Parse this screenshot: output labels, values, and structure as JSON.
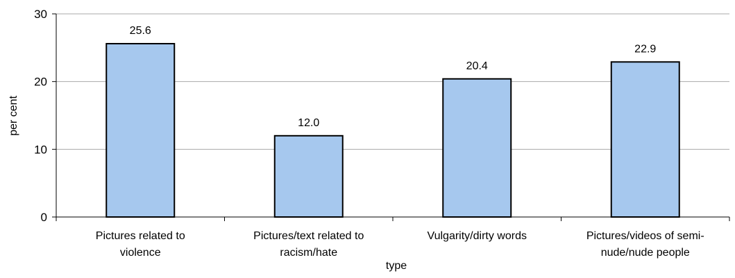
{
  "chart_data": {
    "type": "bar",
    "categories": [
      [
        "Pictures related to",
        "violence"
      ],
      [
        "Pictures/text related to",
        "racism/hate"
      ],
      [
        "Vulgarity/dirty words"
      ],
      [
        "Pictures/videos of semi-",
        "nude/nude people"
      ]
    ],
    "values": [
      25.6,
      12.0,
      20.4,
      22.9
    ],
    "value_labels": [
      "25.6",
      "12.0",
      "20.4",
      "22.9"
    ],
    "xlabel": "type",
    "ylabel": "per cent",
    "ylim": [
      0,
      30
    ],
    "yticks": [
      0,
      10,
      20,
      30
    ],
    "grid": true,
    "bar_color": "#a6c8ee",
    "bar_edge_color": "#000000",
    "grid_color": "#aaaaaa"
  }
}
